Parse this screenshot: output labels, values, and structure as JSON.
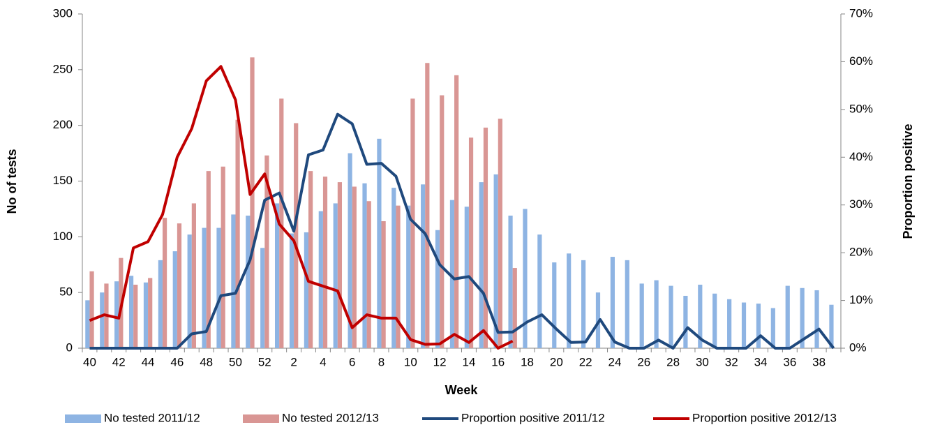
{
  "chart_data": {
    "type": "bar",
    "x_label": "Week",
    "y_label": "No of tests",
    "y2_label": "Proportion positive",
    "categories": [
      "40",
      null,
      "42",
      null,
      "44",
      null,
      "46",
      null,
      "48",
      null,
      "50",
      null,
      "52",
      null,
      "2",
      null,
      "4",
      null,
      "6",
      null,
      "8",
      null,
      "10",
      null,
      "12",
      null,
      "14",
      null,
      "16",
      null,
      "18",
      null,
      "20",
      null,
      "22",
      null,
      "24",
      null,
      "26",
      null,
      "28",
      null,
      "30",
      null,
      "32",
      null,
      "34",
      null,
      "36",
      null,
      "38",
      null
    ],
    "series": [
      {
        "name": "No tested 2011/12",
        "type": "bar",
        "color": "#8eb4e3",
        "values": [
          43,
          50,
          60,
          65,
          59,
          79,
          87,
          102,
          108,
          108,
          120,
          119,
          90,
          130,
          103,
          104,
          123,
          130,
          175,
          148,
          188,
          144,
          128,
          147,
          106,
          133,
          127,
          149,
          156,
          119,
          125,
          102,
          77,
          85,
          79,
          50,
          82,
          79,
          58,
          61,
          56,
          47,
          57,
          49,
          44,
          41,
          40,
          36,
          56,
          54,
          52,
          39
        ]
      },
      {
        "name": "No tested 2012/13",
        "type": "bar",
        "color": "#d99694",
        "values": [
          69,
          58,
          81,
          57,
          63,
          117,
          112,
          130,
          159,
          163,
          205,
          261,
          173,
          224,
          202,
          159,
          154,
          149,
          145,
          132,
          114,
          128,
          224,
          256,
          227,
          245,
          189,
          198,
          206,
          72,
          null,
          null,
          null,
          null,
          null,
          null,
          null,
          null,
          null,
          null,
          null,
          null,
          null,
          null,
          null,
          null,
          null,
          null,
          null,
          null,
          null,
          null
        ]
      },
      {
        "name": "Proportion positive 2011/12",
        "type": "line",
        "axis": "y2",
        "color": "#1f497d",
        "values": [
          0,
          0,
          0,
          0,
          0,
          0,
          0,
          3,
          3.5,
          11,
          11.5,
          18.5,
          31,
          32.5,
          24.5,
          40.5,
          41.5,
          49,
          47,
          38.5,
          38.7,
          36,
          27,
          24,
          17.5,
          14.5,
          15,
          11.5,
          3.3,
          3.4,
          5.5,
          7,
          4,
          1.2,
          1.3,
          6,
          1.3,
          0,
          0,
          1.7,
          0,
          4.3,
          1.7,
          0,
          0,
          0,
          2.6,
          0,
          0,
          2,
          4,
          0
        ]
      },
      {
        "name": "Proportion positive 2012/13",
        "type": "line",
        "axis": "y2",
        "color": "#c00000",
        "values": [
          5.8,
          7,
          6.3,
          21,
          22.3,
          28,
          40,
          46,
          56,
          59,
          52,
          32.2,
          36.5,
          26,
          22.5,
          14,
          13,
          12,
          4.3,
          7,
          6.3,
          6.3,
          1.8,
          0.8,
          0.9,
          2.9,
          1.2,
          3.7,
          0,
          1.5,
          null,
          null,
          null,
          null,
          null,
          null,
          null,
          null,
          null,
          null,
          null,
          null,
          null,
          null,
          null,
          null,
          null,
          null,
          null,
          null,
          null,
          null
        ]
      }
    ],
    "ylim": [
      0,
      300
    ],
    "yticks": [
      0,
      50,
      100,
      150,
      200,
      250,
      300
    ],
    "y2lim": [
      0,
      70
    ],
    "y2ticks": [
      {
        "value": 0,
        "label": "0%"
      },
      {
        "value": 10,
        "label": "10%"
      },
      {
        "value": 20,
        "label": "20%"
      },
      {
        "value": 30,
        "label": "30%"
      },
      {
        "value": 40,
        "label": "40%"
      },
      {
        "value": 50,
        "label": "50%"
      },
      {
        "value": 60,
        "label": "60%"
      },
      {
        "value": 70,
        "label": "70%"
      }
    ],
    "grid": false,
    "legend": "bottom"
  }
}
